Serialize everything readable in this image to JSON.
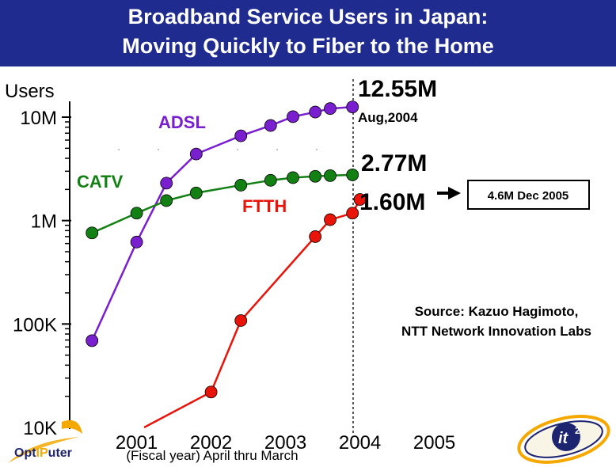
{
  "header": {
    "title_line1": "Broadband Service Users in Japan:",
    "title_line2": "Moving Quickly to Fiber to the Home",
    "banner_color": "#1f2b8f"
  },
  "chart_data": {
    "type": "line",
    "title": "Broadband Service Users in Japan: Moving Quickly to Fiber to the Home",
    "ylabel": "Users",
    "xlabel": "(Fiscal year) April thru March",
    "y_scale": "log",
    "ylim": [
      10000,
      15000000
    ],
    "xlim": [
      2000.1,
      2005.6
    ],
    "y_ticks": [
      {
        "value": 10000,
        "label": "10K"
      },
      {
        "value": 100000,
        "label": "100K"
      },
      {
        "value": 1000000,
        "label": "1M"
      },
      {
        "value": 10000000,
        "label": "10M"
      }
    ],
    "x_ticks": [
      {
        "value": 2001,
        "label": "2001"
      },
      {
        "value": 2002,
        "label": "2002"
      },
      {
        "value": 2003,
        "label": "2003"
      },
      {
        "value": 2004,
        "label": "2004"
      },
      {
        "value": 2005,
        "label": "2005"
      }
    ],
    "grid": false,
    "series": [
      {
        "name": "ADSL",
        "color": "#7a1fd0",
        "points": [
          [
            2000.4,
            69000
          ],
          [
            2001.0,
            620000
          ],
          [
            2001.4,
            2300000
          ],
          [
            2001.8,
            4400000
          ],
          [
            2002.4,
            6600000
          ],
          [
            2002.8,
            8300000
          ],
          [
            2003.1,
            10100000
          ],
          [
            2003.4,
            11200000
          ],
          [
            2003.6,
            12100000
          ],
          [
            2003.9,
            12550000
          ]
        ]
      },
      {
        "name": "CATV",
        "color": "#128012",
        "points": [
          [
            2000.4,
            760000
          ],
          [
            2001.0,
            1180000
          ],
          [
            2001.4,
            1560000
          ],
          [
            2001.8,
            1850000
          ],
          [
            2002.4,
            2200000
          ],
          [
            2002.8,
            2450000
          ],
          [
            2003.1,
            2600000
          ],
          [
            2003.4,
            2680000
          ],
          [
            2003.6,
            2720000
          ],
          [
            2003.9,
            2770000
          ]
        ]
      },
      {
        "name": "FTTH",
        "color": "#e8140a",
        "points": [
          [
            2001.1,
            10000
          ],
          [
            2002.0,
            22000
          ],
          [
            2002.4,
            108000
          ],
          [
            2003.4,
            700000
          ],
          [
            2003.6,
            1020000
          ],
          [
            2003.9,
            1180000
          ],
          [
            2004.0,
            1600000
          ]
        ]
      }
    ],
    "marker_line_x": 2004.0,
    "annotations": {
      "adsl_value": "12.55M",
      "date": "Aug,2004",
      "catv_value": "2.77M",
      "ftth_value": "1.60M",
      "forecast": "4.6M Dec 2005",
      "source_line1": "Source: Kazuo Hagimoto,",
      "source_line2": "NTT Network Innovation Labs"
    }
  },
  "logos": {
    "left": {
      "text_a": "Opt",
      "text_b": "IP",
      "text_c": "uter"
    },
    "right": {
      "text": "it",
      "superscript": "2"
    }
  }
}
